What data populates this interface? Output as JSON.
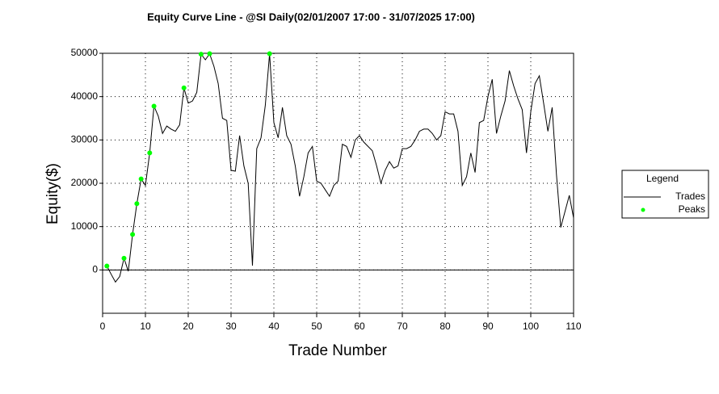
{
  "chart_data": {
    "type": "line",
    "title": "Equity Curve Line - @SI Daily(02/01/2007 17:00 - 31/07/2025 17:00)",
    "x_label": "Trade Number",
    "y_label": "Equity($)",
    "xlim": [
      0,
      110
    ],
    "xticks": [
      0,
      10,
      20,
      30,
      40,
      50,
      60,
      70,
      80,
      90,
      100,
      110
    ],
    "ylim": [
      -10000,
      50000
    ],
    "yticks": [
      0,
      10000,
      20000,
      30000,
      40000,
      50000
    ],
    "grid": true,
    "legend_title": "Legend",
    "legend_position": "right",
    "series": [
      {
        "name": "Trades",
        "color": "#000000",
        "mode": "line",
        "x": [
          1,
          2,
          3,
          4,
          5,
          6,
          7,
          8,
          9,
          10,
          11,
          12,
          13,
          14,
          15,
          16,
          17,
          18,
          19,
          20,
          21,
          22,
          23,
          24,
          25,
          26,
          27,
          28,
          29,
          30,
          31,
          32,
          33,
          34,
          35,
          36,
          37,
          38,
          39,
          40,
          41,
          42,
          43,
          44,
          45,
          46,
          47,
          48,
          49,
          50,
          51,
          52,
          53,
          54,
          55,
          56,
          57,
          58,
          59,
          60,
          61,
          62,
          63,
          64,
          65,
          66,
          67,
          68,
          69,
          70,
          71,
          72,
          73,
          74,
          75,
          76,
          77,
          78,
          79,
          80,
          81,
          82,
          83,
          84,
          85,
          86,
          87,
          88,
          89,
          90,
          91,
          92,
          93,
          94,
          95,
          96,
          97,
          98,
          99,
          100,
          101,
          102,
          103,
          104,
          105,
          106,
          107,
          108,
          109,
          110
        ],
        "values": [
          900,
          -1000,
          -2800,
          -1500,
          2700,
          -300,
          8200,
          15300,
          21000,
          19500,
          27000,
          37800,
          35500,
          31500,
          33200,
          32500,
          32000,
          33500,
          42000,
          38500,
          39000,
          41000,
          49800,
          48500,
          49900,
          47000,
          43000,
          35000,
          34500,
          23000,
          22800,
          31000,
          24000,
          20000,
          1000,
          28000,
          30500,
          38000,
          49900,
          34000,
          30500,
          37500,
          31000,
          29000,
          24000,
          17000,
          21500,
          27000,
          28500,
          20500,
          20000,
          18500,
          17000,
          19500,
          20500,
          29000,
          28500,
          26000,
          30000,
          31000,
          29500,
          28500,
          27500,
          24000,
          20000,
          23000,
          25000,
          23500,
          24000,
          28000,
          28000,
          28500,
          30000,
          32000,
          32500,
          32500,
          31500,
          30000,
          31000,
          36500,
          36000,
          36000,
          32000,
          19500,
          21500,
          27000,
          22500,
          34000,
          34500,
          40000,
          44000,
          31500,
          35500,
          39000,
          46000,
          42500,
          39500,
          37000,
          27000,
          36500,
          43000,
          44800,
          38500,
          32000,
          37500,
          22000,
          9800,
          13500,
          17200,
          12000
        ]
      },
      {
        "name": "Peaks",
        "color": "#00ff00",
        "mode": "markers",
        "x": [
          1,
          5,
          7,
          8,
          9,
          11,
          12,
          19,
          23,
          25,
          39
        ],
        "values": [
          900,
          2700,
          8200,
          15300,
          21000,
          27000,
          37800,
          42000,
          49800,
          49900,
          49900
        ]
      }
    ]
  }
}
